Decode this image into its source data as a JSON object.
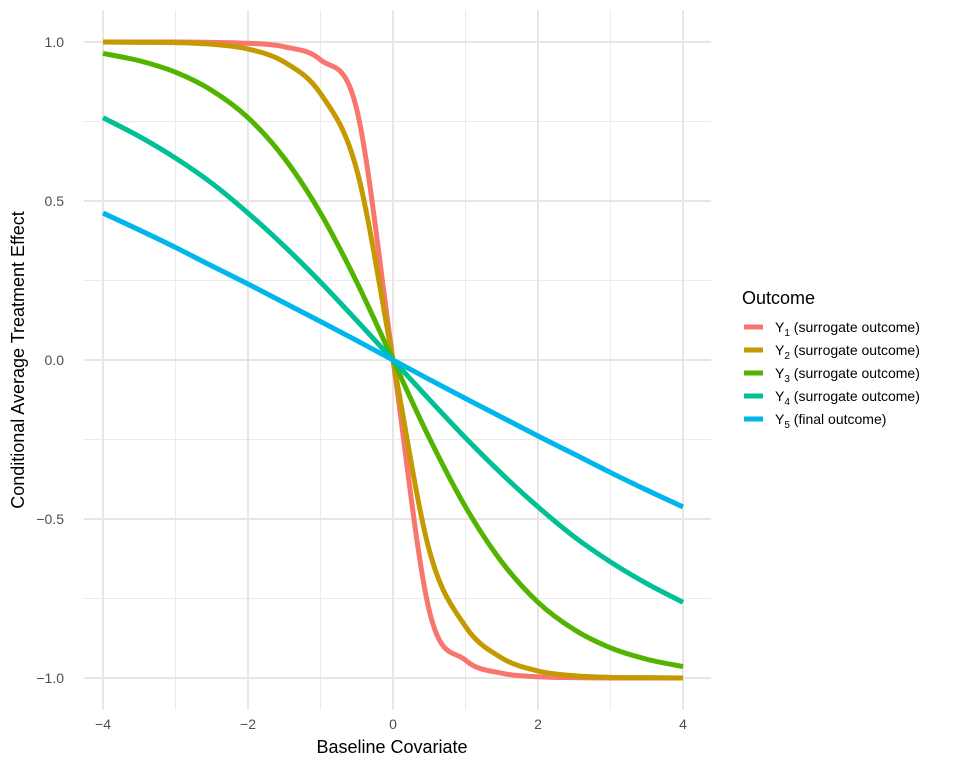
{
  "chart_data": {
    "type": "line",
    "title": "",
    "xlabel": "Baseline Covariate",
    "ylabel": "Conditional Average Treatment Effect",
    "xlim": [
      -4,
      4
    ],
    "ylim": [
      -1,
      1
    ],
    "x_ticks": [
      -4,
      -2,
      0,
      2,
      4
    ],
    "x_tick_labels": [
      "−4",
      "−2",
      "0",
      "2",
      "4"
    ],
    "y_ticks": [
      -1.0,
      -0.5,
      0.0,
      0.5,
      1.0
    ],
    "y_tick_labels": [
      "−1.0",
      "−0.5",
      "0.0",
      "0.5",
      "1.0"
    ],
    "grid": true,
    "legend_title": "Outcome",
    "legend_position": "right",
    "x": [
      -4,
      -3.5,
      -3,
      -2.5,
      -2,
      -1.5,
      -1,
      -0.5,
      0,
      0.5,
      1,
      1.5,
      2,
      2.5,
      3,
      3.5,
      4
    ],
    "series": [
      {
        "name": "Y1 (surrogate outcome)",
        "base": "Y",
        "sub": "1",
        "desc": " (surrogate outcome)",
        "color": "#F8766D",
        "values": [
          1.0,
          1.0,
          1.0,
          0.999,
          0.996,
          0.985,
          0.944,
          0.788,
          0.0,
          -0.788,
          -0.944,
          -0.985,
          -0.996,
          -0.999,
          -1.0,
          -1.0,
          -1.0
        ]
      },
      {
        "name": "Y2 (surrogate outcome)",
        "base": "Y",
        "sub": "2",
        "desc": " (surrogate outcome)",
        "color": "#C49A00",
        "values": [
          1.0,
          0.999,
          0.998,
          0.993,
          0.978,
          0.937,
          0.838,
          0.598,
          0.0,
          -0.598,
          -0.838,
          -0.937,
          -0.978,
          -0.993,
          -0.998,
          -0.999,
          -1.0
        ]
      },
      {
        "name": "Y3 (surrogate outcome)",
        "base": "Y",
        "sub": "3",
        "desc": " (surrogate outcome)",
        "color": "#53B400",
        "values": [
          0.964,
          0.941,
          0.905,
          0.848,
          0.762,
          0.635,
          0.462,
          0.245,
          0.0,
          -0.245,
          -0.462,
          -0.635,
          -0.762,
          -0.848,
          -0.905,
          -0.941,
          -0.964
        ]
      },
      {
        "name": "Y4 (surrogate outcome)",
        "base": "Y",
        "sub": "4",
        "desc": " (surrogate outcome)",
        "color": "#00C094",
        "values": [
          0.762,
          0.703,
          0.635,
          0.556,
          0.462,
          0.358,
          0.245,
          0.124,
          0.0,
          -0.124,
          -0.245,
          -0.358,
          -0.462,
          -0.556,
          -0.635,
          -0.703,
          -0.762
        ]
      },
      {
        "name": "Y5 (final outcome)",
        "base": "Y",
        "sub": "5",
        "desc": " (final outcome)",
        "color": "#00B6EB",
        "values": [
          0.462,
          0.409,
          0.354,
          0.296,
          0.239,
          0.18,
          0.121,
          0.061,
          0.0,
          -0.061,
          -0.121,
          -0.18,
          -0.239,
          -0.296,
          -0.354,
          -0.409,
          -0.462
        ]
      }
    ]
  }
}
